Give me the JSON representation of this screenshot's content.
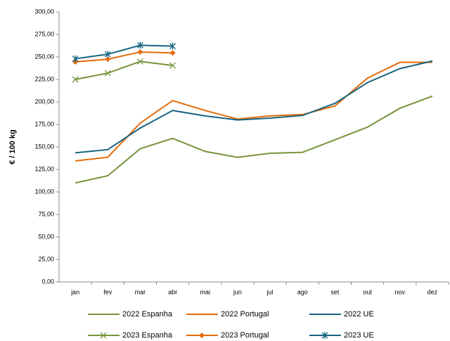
{
  "chart_data": {
    "type": "line",
    "y_label": "€ / 100 kg",
    "categories": [
      "jan",
      "fev",
      "mar",
      "abr",
      "mai",
      "jun",
      "jul",
      "ago",
      "set",
      "out",
      "nov",
      "dez"
    ],
    "ylim": [
      0,
      300
    ],
    "yticks": [
      {
        "value": 0,
        "label": "0,00"
      },
      {
        "value": 25,
        "label": "25,00"
      },
      {
        "value": 50,
        "label": "50,00"
      },
      {
        "value": 75,
        "label": "75,00"
      },
      {
        "value": 100,
        "label": "100,00"
      },
      {
        "value": 125,
        "label": "125,00"
      },
      {
        "value": 150,
        "label": "150,00"
      },
      {
        "value": 175,
        "label": "175,00"
      },
      {
        "value": 200,
        "label": "200,00"
      },
      {
        "value": 225,
        "label": "225,00"
      },
      {
        "value": 250,
        "label": "250,00"
      },
      {
        "value": 275,
        "label": "275,00"
      },
      {
        "value": 300,
        "label": "300,00"
      }
    ],
    "series": [
      {
        "name": "2022 Espanha",
        "color": "#77933c",
        "values": [
          110,
          118,
          148,
          159.5,
          145,
          138.5,
          143,
          144,
          158,
          172,
          193,
          206.5
        ]
      },
      {
        "name": "2022 Portugal",
        "color": "#e46c0a",
        "values": [
          134.5,
          138.5,
          176.5,
          201.5,
          190.5,
          181,
          184.5,
          186,
          195.5,
          226.5,
          244,
          244
        ]
      },
      {
        "name": "2022 UE",
        "color": "#17657f",
        "values": [
          143.5,
          147,
          171,
          190.5,
          184.5,
          180,
          182,
          185,
          198.5,
          221.5,
          237,
          245.5
        ]
      },
      {
        "name": "2023 Espanha",
        "color": "#77933c",
        "marker": "x",
        "values": [
          225,
          232,
          245,
          240.5,
          null,
          null,
          null,
          null,
          null,
          null,
          null,
          null
        ]
      },
      {
        "name": "2023 Portugal",
        "color": "#e46c0a",
        "marker": "diamond",
        "values": [
          244.5,
          247.5,
          255.5,
          254.5,
          null,
          null,
          null,
          null,
          null,
          null,
          null,
          null
        ]
      },
      {
        "name": "2023 UE",
        "color": "#17657f",
        "marker": "star",
        "values": [
          248,
          253,
          263,
          262,
          null,
          null,
          null,
          null,
          null,
          null,
          null,
          null
        ]
      }
    ]
  }
}
